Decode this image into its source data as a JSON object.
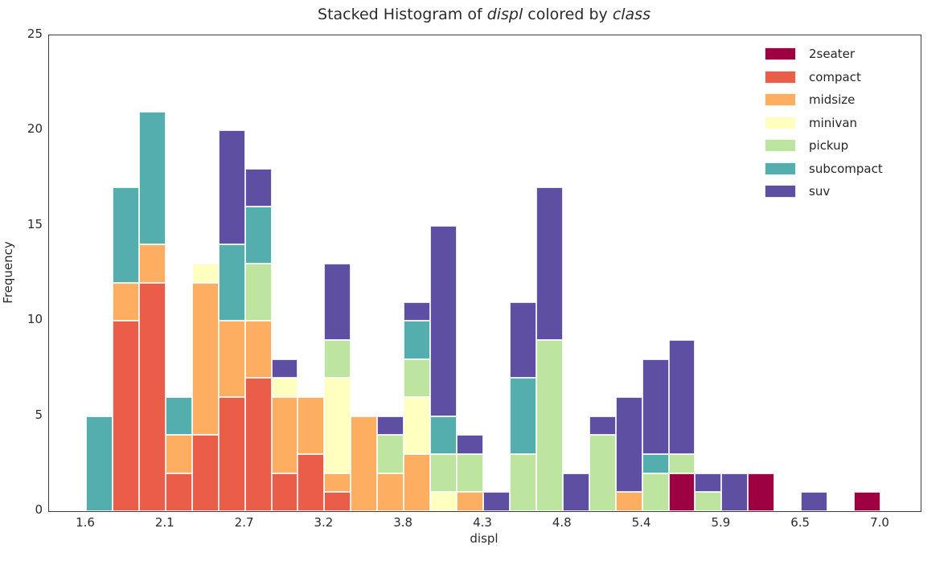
{
  "title": {
    "prefix": "Stacked Histogram of ",
    "var1": "displ",
    "mid": " colored by ",
    "var2": "class"
  },
  "axes": {
    "xlabel": "displ",
    "ylabel": "Frequency",
    "x_range": [
      1.6,
      7.0
    ],
    "y_range": [
      0,
      25
    ],
    "x_ticks": [
      {
        "value": 1.6,
        "label": "1.6"
      },
      {
        "value": 2.14,
        "label": "2.1"
      },
      {
        "value": 2.68,
        "label": "2.7"
      },
      {
        "value": 3.22,
        "label": "3.2"
      },
      {
        "value": 3.76,
        "label": "3.8"
      },
      {
        "value": 4.3,
        "label": "4.3"
      },
      {
        "value": 4.84,
        "label": "4.8"
      },
      {
        "value": 5.38,
        "label": "5.4"
      },
      {
        "value": 5.92,
        "label": "5.9"
      },
      {
        "value": 6.46,
        "label": "6.5"
      },
      {
        "value": 7.0,
        "label": "7.0"
      }
    ],
    "y_ticks": [
      {
        "value": 0,
        "label": "0"
      },
      {
        "value": 5,
        "label": "5"
      },
      {
        "value": 10,
        "label": "10"
      },
      {
        "value": 15,
        "label": "15"
      },
      {
        "value": 20,
        "label": "20"
      },
      {
        "value": 25,
        "label": "25"
      }
    ]
  },
  "legend": {
    "entries": [
      {
        "label": "2seater",
        "color": "#9e0142"
      },
      {
        "label": "compact",
        "color": "#ea5e49"
      },
      {
        "label": "midsize",
        "color": "#fdae61"
      },
      {
        "label": "minivan",
        "color": "#ffffbf"
      },
      {
        "label": "pickup",
        "color": "#bee5a0"
      },
      {
        "label": "subcompact",
        "color": "#54aead"
      },
      {
        "label": "suv",
        "color": "#5e4fa2"
      }
    ]
  },
  "chart_data": {
    "type": "bar",
    "subtype": "stacked-histogram",
    "x_variable": "displ",
    "group_variable": "class",
    "grid": false,
    "legend_position": "upper-right",
    "bin_start": 1.6,
    "bin_end": 7.0,
    "n_bins": 30,
    "bin_width": 0.18,
    "classes": [
      "2seater",
      "compact",
      "midsize",
      "minivan",
      "pickup",
      "subcompact",
      "suv"
    ],
    "colors": {
      "2seater": "#9e0142",
      "compact": "#ea5e49",
      "midsize": "#fdae61",
      "minivan": "#ffffbf",
      "pickup": "#bee5a0",
      "subcompact": "#54aead",
      "suv": "#5e4fa2"
    },
    "bins": [
      {
        "x0": 1.6,
        "x1": 1.78,
        "counts": [
          0,
          0,
          0,
          0,
          0,
          5,
          0
        ]
      },
      {
        "x0": 1.78,
        "x1": 1.96,
        "counts": [
          0,
          10,
          2,
          0,
          0,
          5,
          0
        ]
      },
      {
        "x0": 1.96,
        "x1": 2.14,
        "counts": [
          0,
          12,
          2,
          0,
          0,
          7,
          0
        ]
      },
      {
        "x0": 2.14,
        "x1": 2.32,
        "counts": [
          0,
          2,
          2,
          0,
          0,
          2,
          0
        ]
      },
      {
        "x0": 2.32,
        "x1": 2.5,
        "counts": [
          0,
          4,
          8,
          1,
          0,
          0,
          0
        ]
      },
      {
        "x0": 2.5,
        "x1": 2.68,
        "counts": [
          0,
          6,
          4,
          0,
          0,
          4,
          6
        ]
      },
      {
        "x0": 2.68,
        "x1": 2.86,
        "counts": [
          0,
          7,
          3,
          0,
          3,
          3,
          2
        ]
      },
      {
        "x0": 2.86,
        "x1": 3.04,
        "counts": [
          0,
          2,
          4,
          1,
          0,
          0,
          1
        ]
      },
      {
        "x0": 3.04,
        "x1": 3.22,
        "counts": [
          0,
          3,
          3,
          0,
          0,
          0,
          0
        ]
      },
      {
        "x0": 3.22,
        "x1": 3.4,
        "counts": [
          0,
          1,
          1,
          5,
          2,
          0,
          4
        ]
      },
      {
        "x0": 3.4,
        "x1": 3.58,
        "counts": [
          0,
          0,
          5,
          0,
          0,
          0,
          0
        ]
      },
      {
        "x0": 3.58,
        "x1": 3.76,
        "counts": [
          0,
          0,
          2,
          0,
          2,
          0,
          1
        ]
      },
      {
        "x0": 3.76,
        "x1": 3.94,
        "counts": [
          0,
          0,
          3,
          3,
          2,
          2,
          1
        ]
      },
      {
        "x0": 3.94,
        "x1": 4.12,
        "counts": [
          0,
          0,
          0,
          1,
          2,
          2,
          10
        ]
      },
      {
        "x0": 4.12,
        "x1": 4.3,
        "counts": [
          0,
          0,
          1,
          0,
          2,
          0,
          1
        ]
      },
      {
        "x0": 4.3,
        "x1": 4.48,
        "counts": [
          0,
          0,
          0,
          0,
          0,
          0,
          1
        ]
      },
      {
        "x0": 4.48,
        "x1": 4.66,
        "counts": [
          0,
          0,
          0,
          0,
          3,
          4,
          4
        ]
      },
      {
        "x0": 4.66,
        "x1": 4.84,
        "counts": [
          0,
          0,
          0,
          0,
          9,
          0,
          8
        ]
      },
      {
        "x0": 4.84,
        "x1": 5.02,
        "counts": [
          0,
          0,
          0,
          0,
          0,
          0,
          2
        ]
      },
      {
        "x0": 5.02,
        "x1": 5.2,
        "counts": [
          0,
          0,
          0,
          0,
          4,
          0,
          1
        ]
      },
      {
        "x0": 5.2,
        "x1": 5.38,
        "counts": [
          0,
          0,
          1,
          0,
          0,
          0,
          5
        ]
      },
      {
        "x0": 5.38,
        "x1": 5.56,
        "counts": [
          0,
          0,
          0,
          0,
          2,
          1,
          5
        ]
      },
      {
        "x0": 5.56,
        "x1": 5.74,
        "counts": [
          2,
          0,
          0,
          0,
          1,
          0,
          6
        ]
      },
      {
        "x0": 5.74,
        "x1": 5.92,
        "counts": [
          0,
          0,
          0,
          0,
          1,
          0,
          1
        ]
      },
      {
        "x0": 5.92,
        "x1": 6.1,
        "counts": [
          0,
          0,
          0,
          0,
          0,
          0,
          2
        ]
      },
      {
        "x0": 6.1,
        "x1": 6.28,
        "counts": [
          2,
          0,
          0,
          0,
          0,
          0,
          0
        ]
      },
      {
        "x0": 6.28,
        "x1": 6.46,
        "counts": [
          0,
          0,
          0,
          0,
          0,
          0,
          0
        ]
      },
      {
        "x0": 6.46,
        "x1": 6.64,
        "counts": [
          0,
          0,
          0,
          0,
          0,
          0,
          1
        ]
      },
      {
        "x0": 6.64,
        "x1": 6.82,
        "counts": [
          0,
          0,
          0,
          0,
          0,
          0,
          0
        ]
      },
      {
        "x0": 6.82,
        "x1": 7.0,
        "counts": [
          1,
          0,
          0,
          0,
          0,
          0,
          0
        ]
      }
    ]
  }
}
